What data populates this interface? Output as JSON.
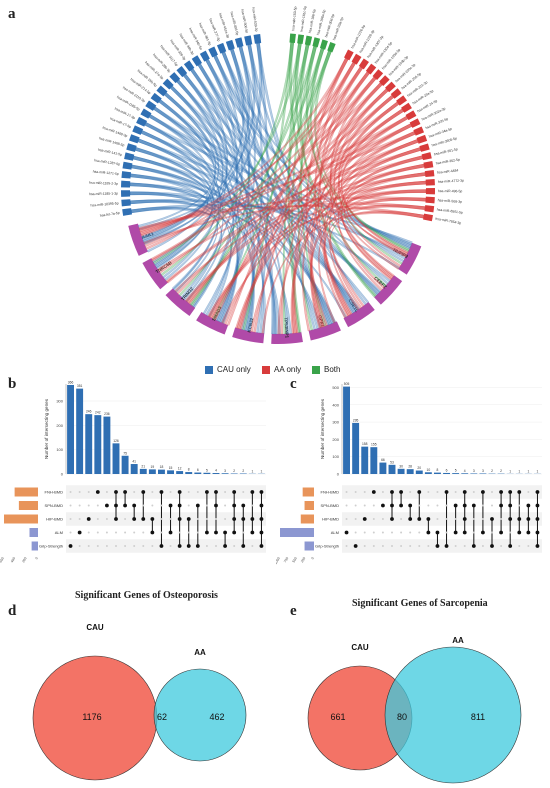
{
  "panels": {
    "a": "a",
    "b": "b",
    "c": "c",
    "d": "d",
    "e": "e"
  },
  "legend": [
    {
      "label": "CAU only",
      "color": "#2f6fb3"
    },
    {
      "label": "AA only",
      "color": "#d83b3b"
    },
    {
      "label": "Both",
      "color": "#3aa34a"
    }
  ],
  "chart_data": [
    {
      "type": "chord",
      "panel": "a",
      "mirna_groups": [
        {
          "group": "CAU only",
          "color": "#2f6fb3",
          "labels": [
            "hsa-let-7a-5p",
            "hsa-miR-10395-5p",
            "hsa-miR-1185-1-3p",
            "hsa-miR-1185-2-3p",
            "hsa-miR-1271-5p",
            "hsa-miR-1287-5p",
            "hsa-miR-141-5p",
            "hsa-miR-1468-5p",
            "hsa-miR-1468-3p",
            "hsa-miR-17-5p",
            "hsa-miR-17-3p",
            "hsa-miR-1185-5p",
            "hsa-miR-2115-3p",
            "hsa-miR-214-5p",
            "hsa-miR-26b-5p",
            "hsa-miR-27a-5p",
            "hsa-miR-29b-3p",
            "hsa-miR-3117-5p",
            "hsa-miR-328-3p",
            "hsa-miR-34b-3p",
            "hsa-miR-346-5p",
            "hsa-miR-361-3p",
            "hsa-miR-377-3p",
            "hsa-miR-451a-3p",
            "hsa-miR-493-5p",
            "hsa-miR-500-5p",
            "hsa-miR-539-3p"
          ]
        },
        {
          "group": "Both",
          "color": "#3aa34a",
          "labels": [
            "hsa-miR-150-5p",
            "hsa-miR-181c-5p",
            "hsa-miR-186-5p",
            "hsa-miR-196a-5p",
            "hsa-miR-30d-5p",
            "hsa-miR-33a-5p"
          ]
        },
        {
          "group": "AA only",
          "color": "#d83b3b",
          "labels": [
            "hsa-miR-1226-5p",
            "hsa-miR-1228-3p",
            "hsa-miR-1307-3p",
            "hsa-miR-1304-5p",
            "hsa-miR-193a-5p",
            "hsa-miR-193b-3p",
            "hsa-miR-200c-3p",
            "hsa-miR-205-5p",
            "hsa-miR-221-3p",
            "hsa-miR-23a-3p",
            "hsa-miR-24-3p",
            "hsa-miR-302a-3p",
            "hsa-miR-335-5p",
            "hsa-miR-34a-5p",
            "hsa-miR-3605-5p",
            "hsa-miR-361-5p",
            "hsa-miR-362-5p",
            "hsa-miR-4484",
            "hsa-miR-4772-3p",
            "hsa-miR-496-5p",
            "hsa-miR-508-3p",
            "hsa-miR-6501-5p",
            "hsa-miR-7854-3p"
          ]
        }
      ],
      "genes": [
        "NUFIP2",
        "CEBPZ",
        "CSE1L",
        "GPX1",
        "TP53INP1",
        "KCNJ2",
        "SMAD3",
        "TRIM32",
        "TNRC6B",
        "AAK1"
      ],
      "gene_color": "#b04aa8"
    },
    {
      "type": "upset",
      "panel": "b",
      "ylabel": "Number of intersecting genes",
      "yticks": [
        0,
        100,
        200,
        300
      ],
      "ylim": [
        0,
        370
      ],
      "sets": [
        "FNH-BMD",
        "SPN-BMD",
        "HIP-BMD",
        "ALM",
        "Grip-Strength"
      ],
      "set_sizes": [
        550,
        450,
        800,
        200,
        150
      ],
      "set_size_ticks": [
        "600",
        "400",
        "200",
        "0"
      ],
      "bars": [
        {
          "value": 366,
          "members": [
            4
          ]
        },
        {
          "value": 351,
          "members": [
            3
          ]
        },
        {
          "value": 246,
          "members": [
            2
          ]
        },
        {
          "value": 242,
          "members": [
            0
          ]
        },
        {
          "value": 236,
          "members": [
            1
          ]
        },
        {
          "value": 126,
          "members": [
            0,
            1,
            2
          ]
        },
        {
          "value": 75,
          "members": [
            0,
            1
          ]
        },
        {
          "value": 41,
          "members": [
            1,
            2
          ]
        },
        {
          "value": 21,
          "members": [
            0,
            2
          ]
        },
        {
          "value": 19,
          "members": [
            2,
            3
          ]
        },
        {
          "value": 18,
          "members": [
            0,
            4
          ]
        },
        {
          "value": 15,
          "members": [
            1,
            3
          ]
        },
        {
          "value": 12,
          "members": [
            0,
            1,
            2,
            4
          ]
        },
        {
          "value": 8,
          "members": [
            2,
            4
          ]
        },
        {
          "value": 6,
          "members": [
            1,
            4
          ]
        },
        {
          "value": 5,
          "members": [
            0,
            3
          ]
        },
        {
          "value": 4,
          "members": [
            0,
            1,
            3
          ]
        },
        {
          "value": 3,
          "members": [
            3,
            4
          ]
        },
        {
          "value": 2,
          "members": [
            0,
            1,
            2,
            3
          ]
        },
        {
          "value": 2,
          "members": [
            1,
            2,
            4
          ]
        },
        {
          "value": 1,
          "members": [
            0,
            2,
            3
          ]
        },
        {
          "value": 1,
          "members": [
            0,
            1,
            2,
            3,
            4
          ]
        }
      ]
    },
    {
      "type": "upset",
      "panel": "c",
      "ylabel": "Number of intersecting genes",
      "yticks": [
        0,
        100,
        200,
        300,
        400,
        500
      ],
      "ylim": [
        0,
        520
      ],
      "sets": [
        "FNH-BMD",
        "SPN-BMD",
        "HIP-BMD",
        "ALM",
        "Grip-Strength"
      ],
      "set_sizes": [
        300,
        250,
        350,
        900,
        250
      ],
      "set_size_ticks": [
        "1000",
        "750",
        "500",
        "250",
        "0"
      ],
      "bars": [
        {
          "value": 505,
          "members": [
            3
          ]
        },
        {
          "value": 295,
          "members": [
            4
          ]
        },
        {
          "value": 158,
          "members": [
            2
          ]
        },
        {
          "value": 155,
          "members": [
            0
          ]
        },
        {
          "value": 66,
          "members": [
            1
          ]
        },
        {
          "value": 53,
          "members": [
            0,
            1,
            2
          ]
        },
        {
          "value": 30,
          "members": [
            0,
            1
          ]
        },
        {
          "value": 28,
          "members": [
            1,
            2
          ]
        },
        {
          "value": 20,
          "members": [
            0,
            2
          ]
        },
        {
          "value": 10,
          "members": [
            2,
            3
          ]
        },
        {
          "value": 8,
          "members": [
            3,
            4
          ]
        },
        {
          "value": 6,
          "members": [
            0,
            4
          ]
        },
        {
          "value": 5,
          "members": [
            1,
            3
          ]
        },
        {
          "value": 4,
          "members": [
            0,
            1,
            2,
            3
          ]
        },
        {
          "value": 3,
          "members": [
            1,
            4
          ]
        },
        {
          "value": 3,
          "members": [
            0,
            3
          ]
        },
        {
          "value": 2,
          "members": [
            2,
            4
          ]
        },
        {
          "value": 2,
          "members": [
            0,
            1,
            3
          ]
        },
        {
          "value": 1,
          "members": [
            0,
            1,
            2,
            4
          ]
        },
        {
          "value": 1,
          "members": [
            0,
            2,
            3
          ]
        },
        {
          "value": 1,
          "members": [
            1,
            2,
            3
          ]
        },
        {
          "value": 1,
          "members": [
            0,
            1,
            2,
            3,
            4
          ]
        }
      ]
    },
    {
      "type": "venn",
      "panel": "d",
      "title": "Significant Genes of Osteoporosis",
      "sets": [
        {
          "label": "CAU",
          "only": 1176,
          "color": "#f26b5e"
        },
        {
          "label": "AA",
          "only": 462,
          "color": "#3ec9de"
        }
      ],
      "overlap": 62
    },
    {
      "type": "venn",
      "panel": "e",
      "title": "Significant Genes of Sarcopenia",
      "sets": [
        {
          "label": "CAU",
          "only": 661,
          "color": "#f26b5e"
        },
        {
          "label": "AA",
          "only": 811,
          "color": "#3ec9de"
        }
      ],
      "overlap": 80
    }
  ]
}
